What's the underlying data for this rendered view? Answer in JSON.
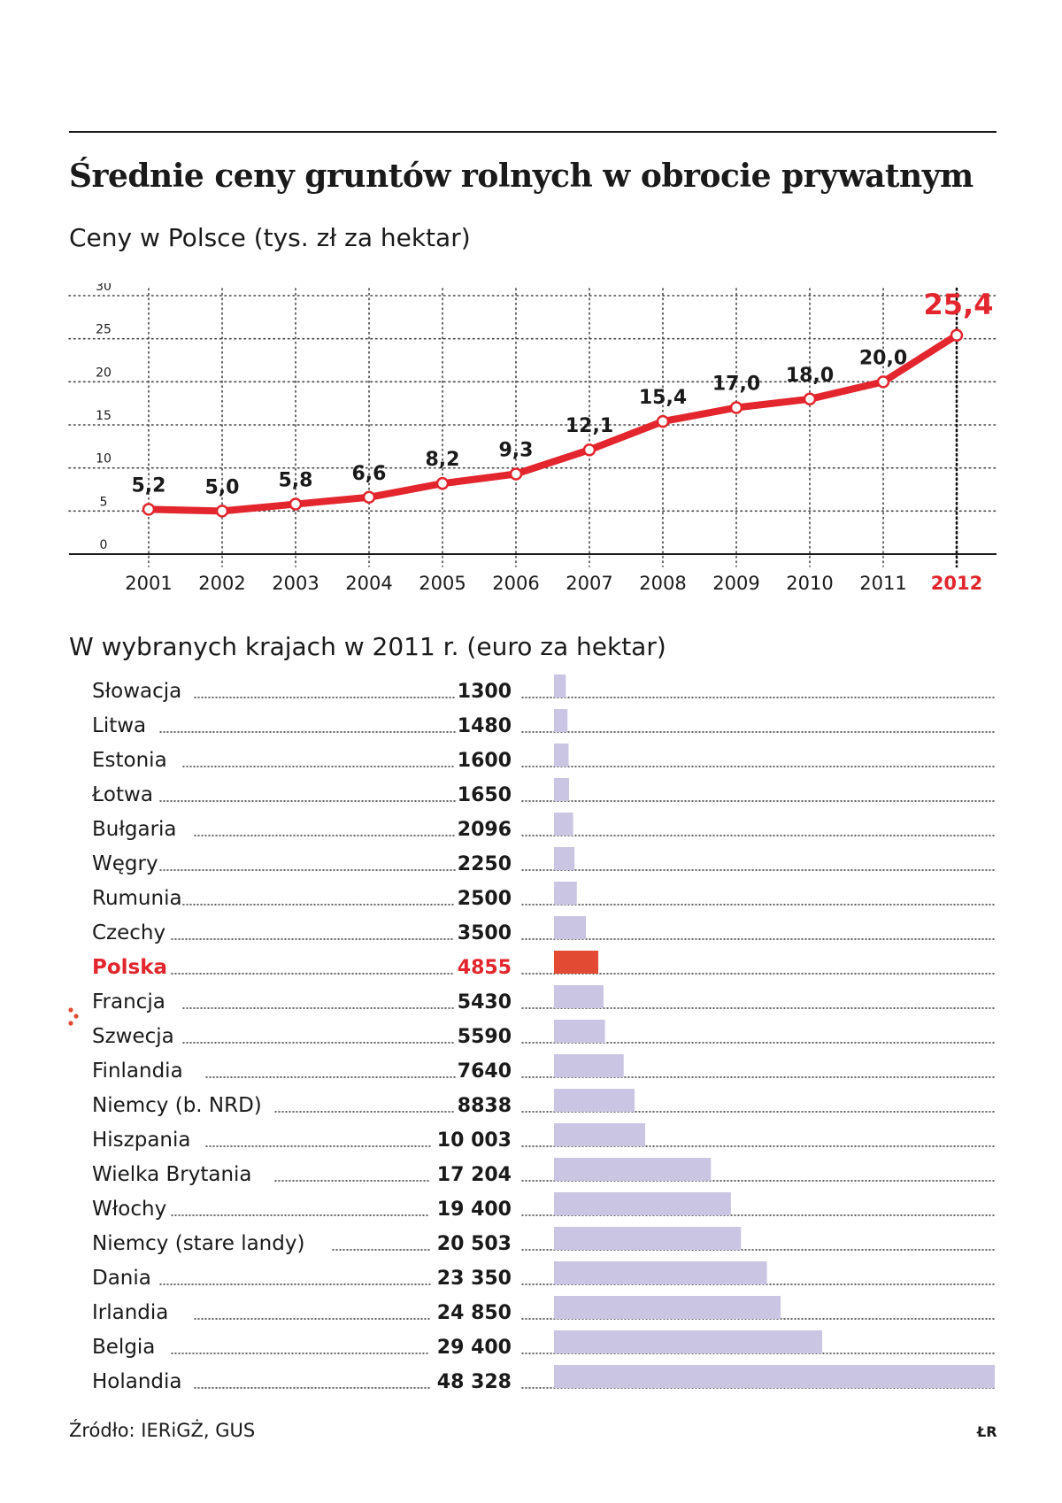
{
  "title": "Średnie ceny gruntów rolnych w obrocie prywatnym",
  "colors": {
    "accent": "#e3252d",
    "bar": "#c9c5e3",
    "highlight_bar": "#e24a33",
    "text": "#1a1a1a"
  },
  "chart_data": [
    {
      "type": "line",
      "subtitle": "Ceny w Polsce (tys. zł za hektar)",
      "x": [
        "2001",
        "2002",
        "2003",
        "2004",
        "2005",
        "2006",
        "2007",
        "2008",
        "2009",
        "2010",
        "2011",
        "2012"
      ],
      "values": [
        5.2,
        5.0,
        5.8,
        6.6,
        8.2,
        9.3,
        12.1,
        15.4,
        17.0,
        18.0,
        20.0,
        25.4
      ],
      "labels": [
        "5,2",
        "5,0",
        "5,8",
        "6,6",
        "8,2",
        "9,3",
        "12,1",
        "15,4",
        "17,0",
        "18,0",
        "20,0",
        "25,4"
      ],
      "yticks": [
        "0",
        "5",
        "10",
        "15",
        "20",
        "25",
        "30"
      ],
      "ylim": [
        0,
        30
      ],
      "highlight": "2012",
      "grid": true
    },
    {
      "type": "bar",
      "subtitle": "W wybranych krajach w 2011 r. (euro za hektar)",
      "categories": [
        "Słowacja",
        "Litwa",
        "Estonia",
        "Łotwa",
        "Bułgaria",
        "Węgry",
        "Rumunia",
        "Czechy",
        "Polska",
        "Francja",
        "Szwecja",
        "Finlandia",
        "Niemcy (b. NRD)",
        "Hiszpania",
        "Wielka Brytania",
        "Włochy",
        "Niemcy (stare landy)",
        "Dania",
        "Irlandia",
        "Belgia",
        "Holandia"
      ],
      "values": [
        1300,
        1480,
        1600,
        1650,
        2096,
        2250,
        2500,
        3500,
        4855,
        5430,
        5590,
        7640,
        8838,
        10003,
        17204,
        19400,
        20503,
        23350,
        24850,
        29400,
        48328
      ],
      "labels": [
        "1300",
        "1480",
        "1600",
        "1650",
        "2096",
        "2250",
        "2500",
        "3500",
        "4855",
        "5430",
        "5590",
        "7640",
        "8838",
        "10 003",
        "17 204",
        "19 400",
        "20 503",
        "23 350",
        "24 850",
        "29 400",
        "48 328"
      ],
      "highlight": "Polska",
      "xlim": [
        0,
        48328
      ]
    }
  ],
  "footer": {
    "source": "Źródło: IERiGŻ, GUS",
    "credit": "ŁR"
  }
}
